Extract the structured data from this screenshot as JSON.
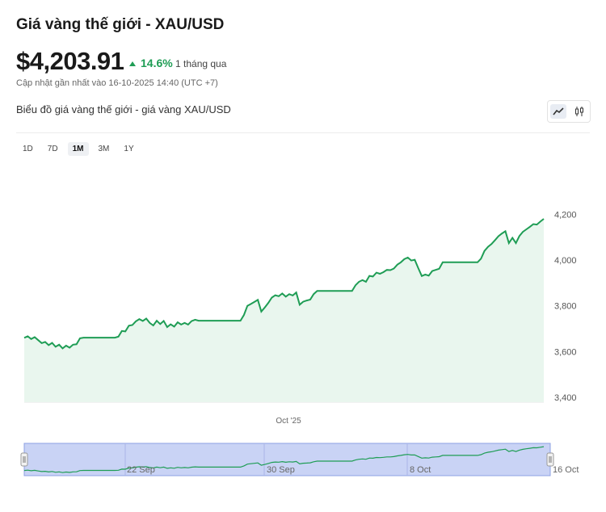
{
  "header": {
    "title": "Giá vàng thế giới - XAU/USD",
    "price": "$4,203.91",
    "change": "14.6%",
    "period": "1 tháng qua",
    "updated": "Cập nhật gần nhất vào 16-10-2025 14:40 (UTC +7)"
  },
  "chart_section": {
    "subtitle": "Biểu đồ giá vàng thế giới - giá vàng XAU/USD",
    "view_toggle": [
      "line-chart-icon",
      "candlestick-icon"
    ],
    "active_view": "line-chart-icon"
  },
  "ranges": [
    "1D",
    "7D",
    "1M",
    "3M",
    "1Y"
  ],
  "active_range": "1M",
  "colors": {
    "line": "#1f9d55",
    "fill": "#e9f6ee",
    "up": "#1f9d55",
    "navigator": "#c9d3f5"
  },
  "chart_data": {
    "type": "area",
    "title": "",
    "xlabel": "",
    "ylabel": "",
    "ylim": [
      3400,
      4260
    ],
    "yticks": [
      4200,
      4000,
      3800,
      3600,
      3400
    ],
    "ytick_labels": [
      "4,200",
      "4,000",
      "3,800",
      "3,600",
      "3,400"
    ],
    "xtick_labels": [
      "Oct '25"
    ],
    "navigator_labels": [
      "22 Sep",
      "30 Sep",
      "8 Oct",
      "16 Oct"
    ],
    "series": [
      {
        "values": [
          3660,
          3667,
          3655,
          3663,
          3650,
          3637,
          3642,
          3628,
          3638,
          3621,
          3630,
          3614,
          3626,
          3617,
          3630,
          3632,
          3658,
          3661,
          3661,
          3661,
          3661,
          3661,
          3661,
          3661,
          3661,
          3661,
          3661,
          3665,
          3690,
          3688,
          3713,
          3716,
          3732,
          3742,
          3734,
          3744,
          3725,
          3714,
          3735,
          3720,
          3734,
          3707,
          3719,
          3709,
          3728,
          3718,
          3725,
          3718,
          3733,
          3739,
          3735,
          3735,
          3735,
          3735,
          3735,
          3735,
          3735,
          3735,
          3735,
          3735,
          3735,
          3735,
          3735,
          3760,
          3800,
          3808,
          3817,
          3826,
          3775,
          3793,
          3813,
          3836,
          3846,
          3842,
          3854,
          3840,
          3851,
          3845,
          3858,
          3805,
          3818,
          3823,
          3827,
          3851,
          3865,
          3865,
          3865,
          3865,
          3865,
          3865,
          3865,
          3865,
          3865,
          3865,
          3865,
          3890,
          3905,
          3912,
          3905,
          3931,
          3928,
          3945,
          3940,
          3947,
          3957,
          3956,
          3963,
          3980,
          3990,
          4004,
          4011,
          3998,
          4001,
          3965,
          3930,
          3937,
          3932,
          3952,
          3957,
          3962,
          3990,
          3990,
          3990,
          3990,
          3990,
          3990,
          3990,
          3990,
          3990,
          3990,
          3990,
          4006,
          4040,
          4058,
          4070,
          4087,
          4104,
          4116,
          4126,
          4074,
          4097,
          4074,
          4105,
          4123,
          4134,
          4145,
          4157,
          4155,
          4168,
          4180
        ]
      }
    ]
  }
}
